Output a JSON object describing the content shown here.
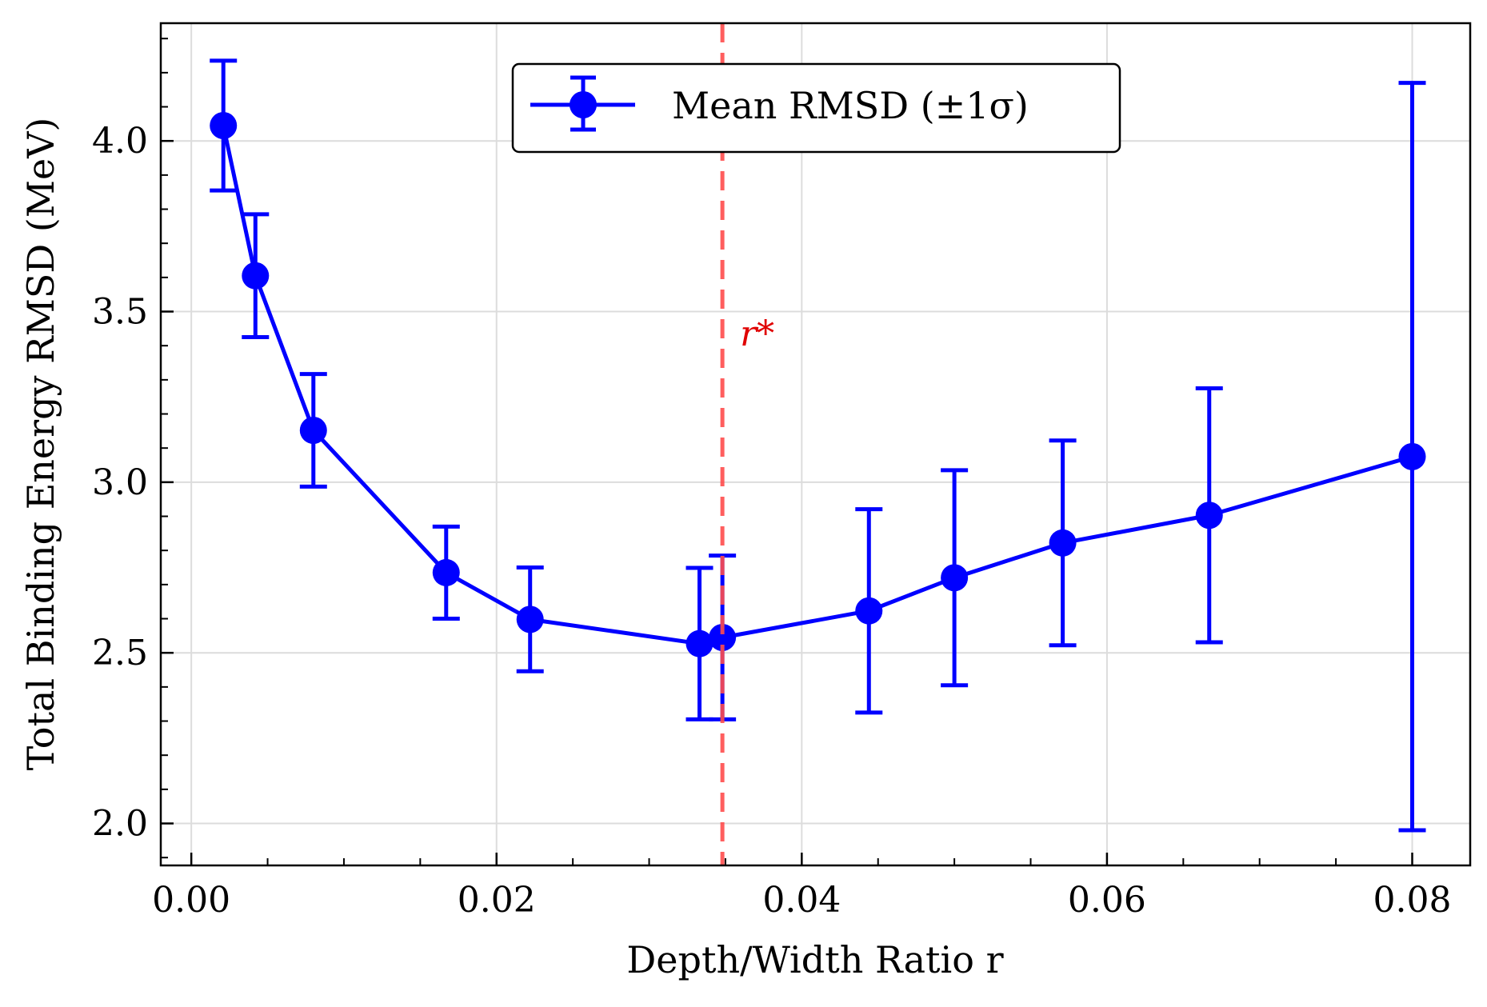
{
  "chart_data": {
    "type": "line",
    "title": "",
    "xlabel": "Depth/Width Ratio r",
    "ylabel": "Total Binding Energy RMSD (MeV)",
    "xlim": [
      -0.002,
      0.0838
    ],
    "ylim": [
      1.877,
      4.345
    ],
    "grid": true,
    "legend_position": "top-center",
    "x_ticks": [
      0.0,
      0.02,
      0.04,
      0.06,
      0.08
    ],
    "x_tick_labels": [
      "0.00",
      "0.02",
      "0.04",
      "0.06",
      "0.08"
    ],
    "y_ticks": [
      2.0,
      2.5,
      3.0,
      3.5,
      4.0
    ],
    "y_tick_labels": [
      "2.0",
      "2.5",
      "3.0",
      "3.5",
      "4.0"
    ],
    "series": [
      {
        "name": "Mean RMSD (±1σ)",
        "color": "#0000ff",
        "x": [
          0.0021,
          0.0042,
          0.008,
          0.0167,
          0.0222,
          0.0333,
          0.0348,
          0.0444,
          0.05,
          0.0571,
          0.0667,
          0.08
        ],
        "y": [
          4.045,
          3.605,
          3.152,
          2.735,
          2.598,
          2.527,
          2.545,
          2.623,
          2.72,
          2.822,
          2.903,
          3.075
        ],
        "yerr": [
          0.19,
          0.18,
          0.165,
          0.135,
          0.152,
          0.222,
          0.24,
          0.298,
          0.315,
          0.3,
          0.372,
          1.095
        ]
      }
    ],
    "reference_line": {
      "orientation": "vertical",
      "x": 0.0348,
      "label": "r*",
      "color": "#ff4d4d",
      "style": "dashed"
    }
  }
}
